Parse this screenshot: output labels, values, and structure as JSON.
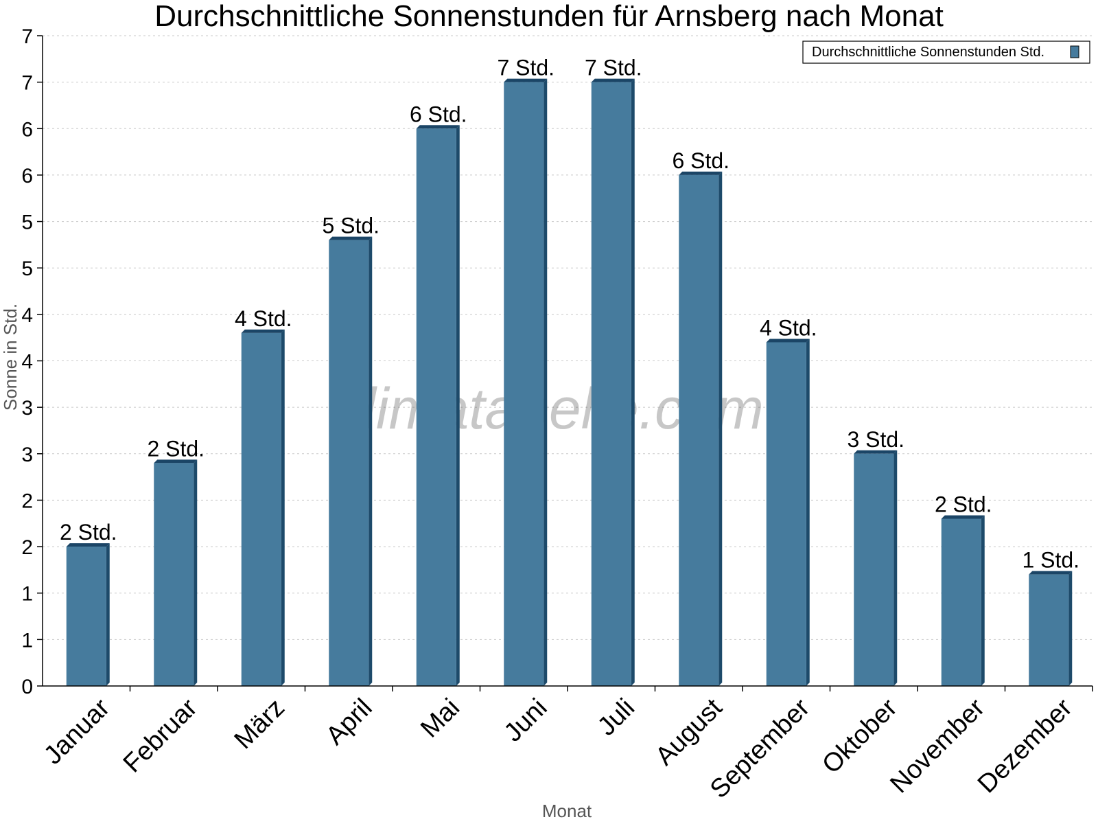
{
  "chart_data": {
    "type": "bar",
    "title": "Durchschnittliche Sonnenstunden für Arnsberg nach Monat",
    "xlabel": "Monat",
    "ylabel": "Sonne in Std.",
    "categories": [
      "Januar",
      "Februar",
      "März",
      "April",
      "Mai",
      "Juni",
      "Juli",
      "August",
      "September",
      "Oktober",
      "November",
      "Dezember"
    ],
    "series": [
      {
        "name": "Durchschnittliche Sonnenstunden Std.",
        "values": [
          1.5,
          2.4,
          3.8,
          4.8,
          6.0,
          6.5,
          6.5,
          5.5,
          3.7,
          2.5,
          1.8,
          1.2
        ],
        "labels": [
          "2 Std.",
          "2 Std.",
          "4 Std.",
          "5 Std.",
          "6 Std.",
          "7 Std.",
          "7 Std.",
          "6 Std.",
          "4 Std.",
          "3 Std.",
          "2 Std.",
          "1 Std."
        ]
      }
    ],
    "ylim": [
      0,
      7
    ],
    "y_ticks": [
      0,
      0.5,
      1,
      1.5,
      2,
      2.5,
      3,
      3.5,
      4,
      4.5,
      5,
      5.5,
      6,
      6.5,
      7
    ],
    "y_tick_labels": [
      "0",
      "1",
      "1",
      "2",
      "2",
      "3",
      "3",
      "4",
      "4",
      "5",
      "5",
      "6",
      "6",
      "7",
      "7"
    ],
    "grid": true,
    "legend_position": "top-right",
    "colors": {
      "bar": "#467b9d",
      "bar_side": "#1d4a6a",
      "bar_top": "#1b4566"
    },
    "watermark": "klimatabelle.com"
  }
}
